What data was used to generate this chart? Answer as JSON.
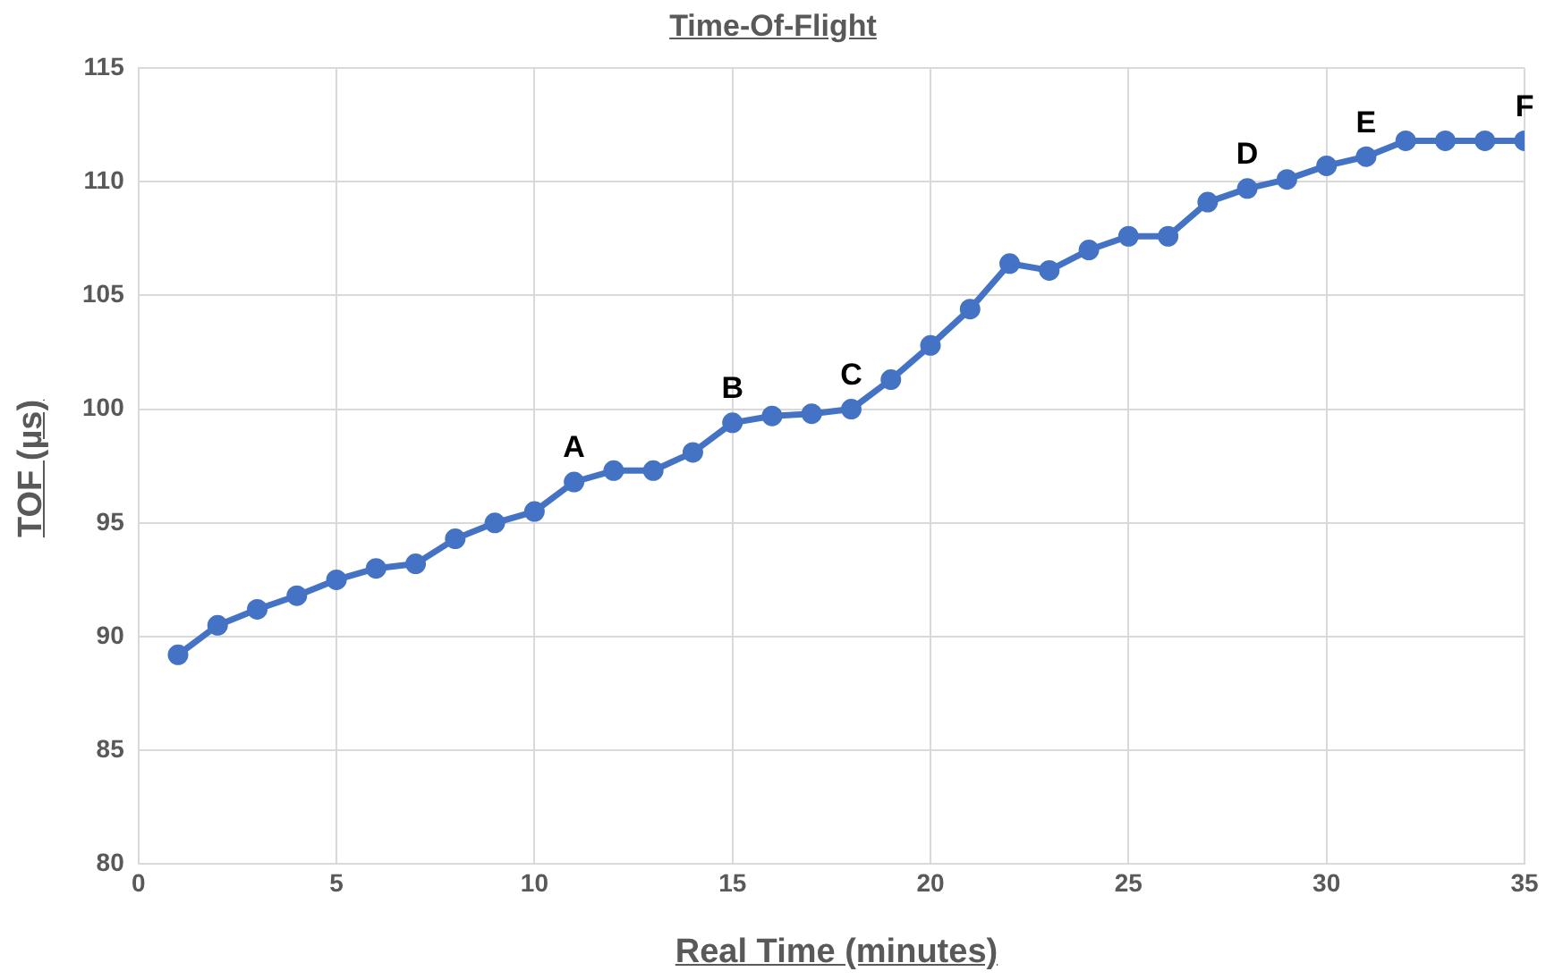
{
  "chart_data": {
    "type": "line",
    "title": "Time-Of-Flight",
    "xlabel": "Real Time (minutes)",
    "ylabel": "TOF (µs)",
    "x": [
      1,
      2,
      3,
      4,
      5,
      6,
      7,
      8,
      9,
      10,
      11,
      12,
      13,
      14,
      15,
      16,
      17,
      18,
      19,
      20,
      21,
      22,
      23,
      24,
      25,
      26,
      27,
      28,
      29,
      30,
      31,
      32,
      33,
      34,
      35
    ],
    "series": [
      {
        "color": "#4472c4",
        "values": [
          89.2,
          90.5,
          91.2,
          91.8,
          92.5,
          93.0,
          93.2,
          94.3,
          95.0,
          95.5,
          96.8,
          97.3,
          97.3,
          98.1,
          99.4,
          99.7,
          99.8,
          100.0,
          101.3,
          102.8,
          104.4,
          106.4,
          106.1,
          107.0,
          107.6,
          107.6,
          109.1,
          109.7,
          110.1,
          110.7,
          111.1,
          111.8,
          111.8,
          111.8,
          111.8
        ]
      }
    ],
    "xlim": [
      0,
      35
    ],
    "xticks": [
      0,
      5,
      10,
      15,
      20,
      25,
      30,
      35
    ],
    "ylim": [
      80,
      115
    ],
    "yticks": [
      80,
      85,
      90,
      95,
      100,
      105,
      110,
      115
    ],
    "grid": true,
    "legend": false,
    "marker": "circle",
    "line_style": "solid",
    "annotations": [
      {
        "text": "A",
        "x": 11,
        "y": 96.8
      },
      {
        "text": "B",
        "x": 15,
        "y": 99.4
      },
      {
        "text": "C",
        "x": 18,
        "y": 100.0
      },
      {
        "text": "D",
        "x": 28,
        "y": 109.7
      },
      {
        "text": "E",
        "x": 31,
        "y": 111.1
      },
      {
        "text": "F",
        "x": 35,
        "y": 111.8
      }
    ]
  }
}
